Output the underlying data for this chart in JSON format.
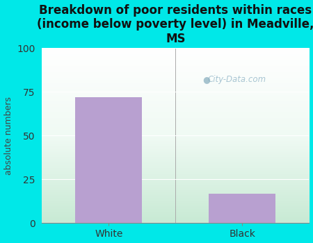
{
  "categories": [
    "White",
    "Black"
  ],
  "values": [
    72,
    17
  ],
  "bar_color": "#b8a0d0",
  "title": "Breakdown of poor residents within races\n(income below poverty level) in Meadville,\nMS",
  "ylabel": "absolute numbers",
  "ylim": [
    0,
    100
  ],
  "yticks": [
    0,
    25,
    50,
    75,
    100
  ],
  "background_color": "#00e8e8",
  "watermark": "City-Data.com",
  "title_fontsize": 12,
  "ylabel_fontsize": 9,
  "tick_fontsize": 10,
  "grid_color": "#dddddd"
}
